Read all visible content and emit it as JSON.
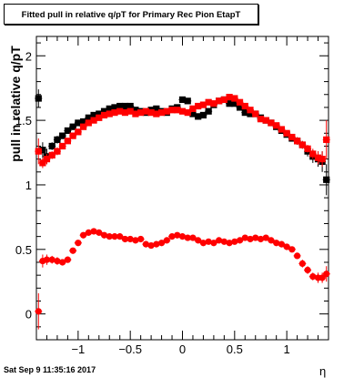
{
  "chart_data": {
    "type": "scatter",
    "title": "Fitted pull in relative q/pT for Primary Rec Pion EtapT",
    "xlabel": "η",
    "ylabel": "pull in relative q/pT",
    "xlim": [
      -1.4,
      1.4
    ],
    "ylim": [
      -0.2,
      2.15
    ],
    "x_ticks": [
      -1,
      -0.5,
      0,
      0.5,
      1
    ],
    "x_tick_labels": [
      "−1",
      "−0.5",
      "0",
      "0.5",
      "1"
    ],
    "y_ticks": [
      0,
      0.5,
      1,
      1.5,
      2
    ],
    "y_tick_labels": [
      "0",
      "0.5",
      "1",
      "1.5",
      "2"
    ],
    "grid": false,
    "legend": "none",
    "series": [
      {
        "marker": "square",
        "color": "#000000",
        "x": [
          -1.38,
          -1.34,
          -1.3,
          -1.25,
          -1.2,
          -1.15,
          -1.1,
          -1.05,
          -1.0,
          -0.95,
          -0.9,
          -0.85,
          -0.8,
          -0.75,
          -0.7,
          -0.65,
          -0.6,
          -0.55,
          -0.5,
          -0.45,
          -0.4,
          -0.35,
          -0.3,
          -0.25,
          -0.2,
          -0.15,
          -0.1,
          -0.05,
          0.0,
          0.05,
          0.1,
          0.15,
          0.2,
          0.25,
          0.3,
          0.35,
          0.4,
          0.45,
          0.5,
          0.55,
          0.6,
          0.65,
          0.7,
          0.75,
          0.8,
          0.85,
          0.9,
          0.95,
          1.0,
          1.05,
          1.1,
          1.15,
          1.2,
          1.25,
          1.3,
          1.34,
          1.38
        ],
        "y": [
          1.67,
          1.27,
          1.22,
          1.3,
          1.35,
          1.38,
          1.42,
          1.45,
          1.48,
          1.49,
          1.52,
          1.54,
          1.55,
          1.57,
          1.59,
          1.6,
          1.61,
          1.61,
          1.61,
          1.58,
          1.57,
          1.56,
          1.58,
          1.59,
          1.57,
          1.56,
          1.59,
          1.6,
          1.66,
          1.65,
          1.55,
          1.53,
          1.54,
          1.57,
          1.62,
          1.65,
          1.66,
          1.63,
          1.63,
          1.6,
          1.56,
          1.55,
          1.55,
          1.52,
          1.5,
          1.48,
          1.45,
          1.42,
          1.39,
          1.36,
          1.34,
          1.31,
          1.26,
          1.22,
          1.2,
          1.18,
          1.04
        ],
        "err": [
          0.07,
          0.06,
          0.06,
          0.03,
          0.03,
          0.02,
          0.02,
          0.02,
          0.01,
          0.01,
          0.01,
          0.01,
          0.01,
          0.01,
          0.01,
          0.01,
          0.01,
          0.01,
          0.01,
          0.01,
          0.01,
          0.01,
          0.01,
          0.01,
          0.01,
          0.01,
          0.01,
          0.01,
          0.01,
          0.01,
          0.01,
          0.01,
          0.01,
          0.01,
          0.01,
          0.01,
          0.01,
          0.01,
          0.01,
          0.01,
          0.01,
          0.01,
          0.01,
          0.01,
          0.01,
          0.01,
          0.02,
          0.02,
          0.02,
          0.02,
          0.03,
          0.03,
          0.04,
          0.05,
          0.06,
          0.08,
          0.12
        ]
      },
      {
        "marker": "square",
        "color": "#ff0000",
        "x": [
          -1.38,
          -1.34,
          -1.3,
          -1.25,
          -1.2,
          -1.15,
          -1.1,
          -1.05,
          -1.0,
          -0.95,
          -0.9,
          -0.85,
          -0.8,
          -0.75,
          -0.7,
          -0.65,
          -0.6,
          -0.55,
          -0.5,
          -0.45,
          -0.4,
          -0.35,
          -0.3,
          -0.25,
          -0.2,
          -0.15,
          -0.1,
          -0.05,
          0.0,
          0.05,
          0.1,
          0.15,
          0.2,
          0.25,
          0.3,
          0.35,
          0.4,
          0.45,
          0.5,
          0.55,
          0.6,
          0.65,
          0.7,
          0.75,
          0.8,
          0.85,
          0.9,
          0.95,
          1.0,
          1.05,
          1.1,
          1.15,
          1.2,
          1.25,
          1.3,
          1.34,
          1.38
        ],
        "y": [
          1.26,
          1.17,
          1.2,
          1.23,
          1.26,
          1.3,
          1.34,
          1.38,
          1.41,
          1.45,
          1.48,
          1.5,
          1.52,
          1.54,
          1.55,
          1.56,
          1.57,
          1.56,
          1.57,
          1.55,
          1.56,
          1.57,
          1.56,
          1.55,
          1.56,
          1.57,
          1.58,
          1.58,
          1.57,
          1.56,
          1.59,
          1.61,
          1.62,
          1.64,
          1.63,
          1.65,
          1.66,
          1.68,
          1.67,
          1.64,
          1.61,
          1.58,
          1.55,
          1.51,
          1.5,
          1.48,
          1.46,
          1.43,
          1.4,
          1.37,
          1.34,
          1.31,
          1.28,
          1.24,
          1.21,
          1.2,
          1.35
        ],
        "err": [
          0.1,
          0.04,
          0.04,
          0.03,
          0.03,
          0.02,
          0.02,
          0.02,
          0.01,
          0.01,
          0.01,
          0.01,
          0.01,
          0.01,
          0.01,
          0.01,
          0.01,
          0.01,
          0.01,
          0.01,
          0.01,
          0.01,
          0.01,
          0.01,
          0.01,
          0.01,
          0.01,
          0.01,
          0.01,
          0.01,
          0.01,
          0.01,
          0.01,
          0.01,
          0.01,
          0.01,
          0.01,
          0.01,
          0.01,
          0.01,
          0.01,
          0.01,
          0.01,
          0.01,
          0.01,
          0.01,
          0.02,
          0.02,
          0.02,
          0.02,
          0.03,
          0.03,
          0.03,
          0.04,
          0.05,
          0.06,
          0.15
        ]
      },
      {
        "marker": "circle",
        "color": "#ff0000",
        "x": [
          -1.38,
          -1.34,
          -1.3,
          -1.25,
          -1.2,
          -1.15,
          -1.1,
          -1.05,
          -1.0,
          -0.95,
          -0.9,
          -0.85,
          -0.8,
          -0.75,
          -0.7,
          -0.65,
          -0.6,
          -0.55,
          -0.5,
          -0.45,
          -0.4,
          -0.35,
          -0.3,
          -0.25,
          -0.2,
          -0.15,
          -0.1,
          -0.05,
          0.0,
          0.05,
          0.1,
          0.15,
          0.2,
          0.25,
          0.3,
          0.35,
          0.4,
          0.45,
          0.5,
          0.55,
          0.6,
          0.65,
          0.7,
          0.75,
          0.8,
          0.85,
          0.9,
          0.95,
          1.0,
          1.05,
          1.1,
          1.15,
          1.2,
          1.25,
          1.3,
          1.34,
          1.38
        ],
        "y": [
          0.02,
          0.41,
          0.42,
          0.42,
          0.41,
          0.4,
          0.42,
          0.49,
          0.55,
          0.61,
          0.63,
          0.64,
          0.63,
          0.61,
          0.6,
          0.6,
          0.6,
          0.58,
          0.58,
          0.57,
          0.58,
          0.54,
          0.53,
          0.54,
          0.55,
          0.57,
          0.6,
          0.61,
          0.6,
          0.59,
          0.59,
          0.57,
          0.55,
          0.56,
          0.55,
          0.57,
          0.56,
          0.55,
          0.56,
          0.57,
          0.59,
          0.58,
          0.59,
          0.58,
          0.59,
          0.57,
          0.55,
          0.54,
          0.52,
          0.5,
          0.45,
          0.39,
          0.34,
          0.29,
          0.28,
          0.28,
          0.31
        ],
        "err": [
          0.14,
          0.05,
          0.04,
          0.03,
          0.03,
          0.02,
          0.02,
          0.02,
          0.01,
          0.01,
          0.01,
          0.01,
          0.01,
          0.01,
          0.01,
          0.01,
          0.01,
          0.01,
          0.01,
          0.01,
          0.01,
          0.01,
          0.01,
          0.01,
          0.01,
          0.01,
          0.01,
          0.01,
          0.01,
          0.01,
          0.01,
          0.01,
          0.01,
          0.01,
          0.01,
          0.01,
          0.01,
          0.01,
          0.01,
          0.01,
          0.01,
          0.01,
          0.01,
          0.01,
          0.01,
          0.01,
          0.01,
          0.01,
          0.02,
          0.02,
          0.02,
          0.03,
          0.03,
          0.03,
          0.04,
          0.04,
          0.06
        ]
      }
    ]
  },
  "footer": "Sat Sep  9 11:35:16 2017"
}
